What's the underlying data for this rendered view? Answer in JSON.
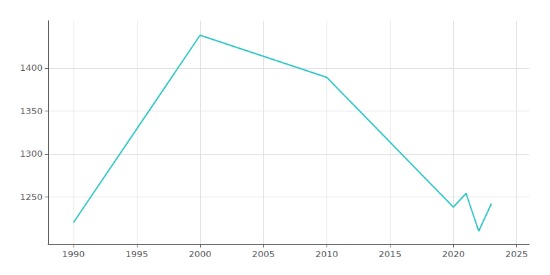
{
  "chart_data": {
    "type": "line",
    "x": [
      1990,
      2000,
      2010,
      2020,
      2021,
      2022,
      2023
    ],
    "values": [
      1220,
      1438,
      1389,
      1238,
      1254,
      1210,
      1242
    ],
    "color": "#2ac4c4",
    "xlim": [
      1988,
      2026
    ],
    "xticks": [
      1990,
      1995,
      2000,
      2005,
      2010,
      2015,
      2020,
      2025
    ],
    "ylim": [
      1195,
      1455
    ],
    "yticks": [
      1250,
      1300,
      1350,
      1400
    ],
    "grid": true
  }
}
